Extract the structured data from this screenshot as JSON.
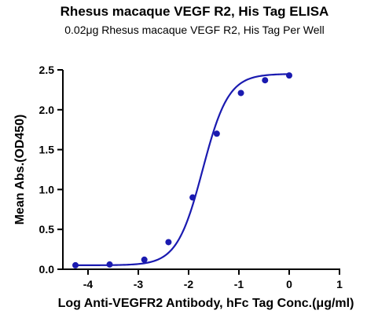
{
  "chart_data": {
    "type": "scatter",
    "title": "Rhesus macaque VEGF R2, His Tag ELISA",
    "subtitle": "0.02μg Rhesus macaque VEGF R2, His Tag Per Well",
    "xlabel": "Log Anti-VEGFR2 Antibody, hFc Tag Conc.(μg/ml)",
    "ylabel": "Mean Abs.(OD450)",
    "xlim": [
      -4.5,
      1
    ],
    "ylim": [
      0,
      2.5
    ],
    "x_ticks": [
      -4,
      -3,
      -2,
      -1,
      0,
      1
    ],
    "y_ticks": [
      0.0,
      0.5,
      1.0,
      1.5,
      2.0,
      2.5
    ],
    "x_tick_labels": [
      "-4",
      "-3",
      "-2",
      "-1",
      "0",
      "1"
    ],
    "y_tick_labels": [
      "0.0",
      "0.5",
      "1.0",
      "1.5",
      "2.0",
      "2.5"
    ],
    "grid": false,
    "series": [
      {
        "points": [
          {
            "x": -4.25,
            "y": 0.05
          },
          {
            "x": -3.57,
            "y": 0.06
          },
          {
            "x": -2.88,
            "y": 0.12
          },
          {
            "x": -2.4,
            "y": 0.34
          },
          {
            "x": -1.92,
            "y": 0.9
          },
          {
            "x": -1.44,
            "y": 1.7
          },
          {
            "x": -0.96,
            "y": 2.21
          },
          {
            "x": -0.48,
            "y": 2.37
          },
          {
            "x": 0.0,
            "y": 2.43
          }
        ],
        "curve": {
          "bottom": 0.05,
          "top": 2.45,
          "logEC50": -1.72,
          "hill": 1.7
        }
      }
    ]
  },
  "colors": {
    "series": "#1a1ab0",
    "axis": "#000000"
  }
}
